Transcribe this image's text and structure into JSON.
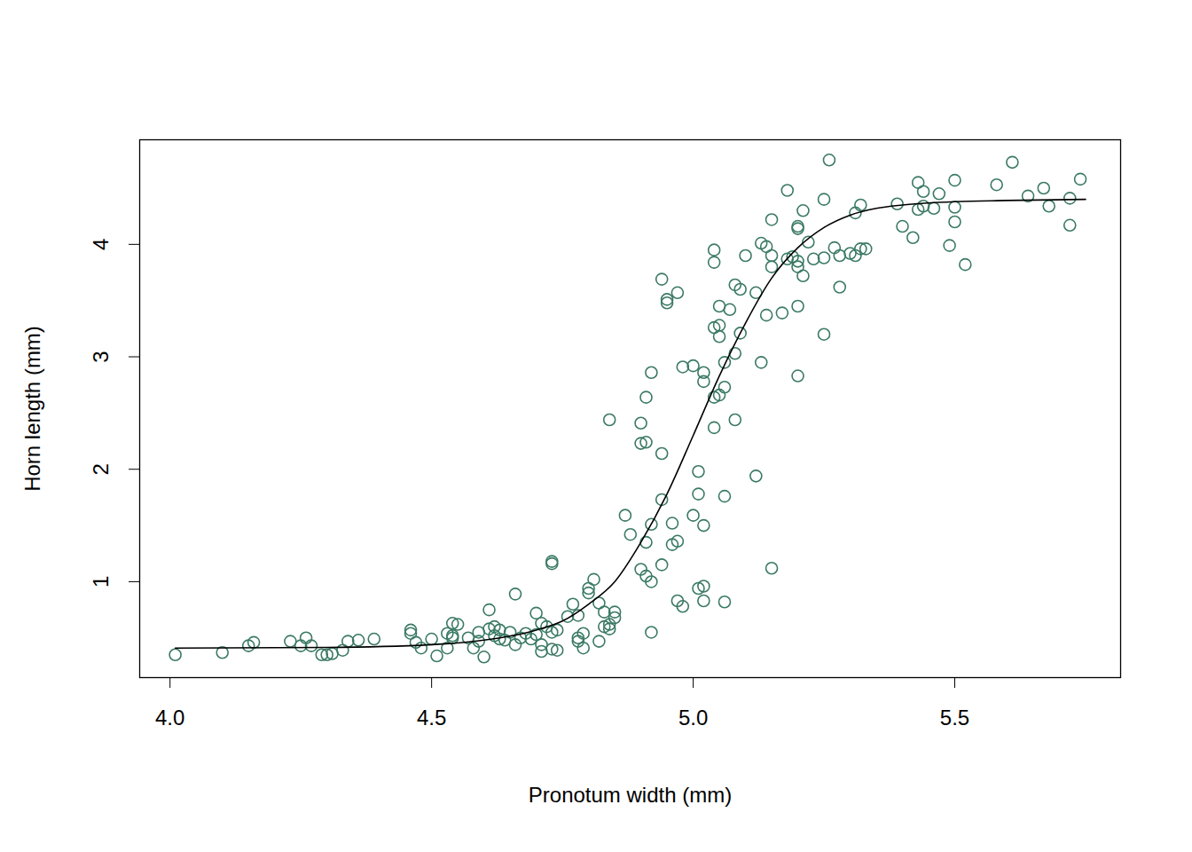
{
  "chart_data": {
    "type": "scatter",
    "x_label": "Pronotum width (mm)",
    "y_label": "Horn length (mm)",
    "xlim": [
      3.942,
      5.817
    ],
    "ylim": [
      0.147,
      4.93
    ],
    "xticks": [
      {
        "value": 4,
        "label": "4.0"
      },
      {
        "value": 4.5,
        "label": "4.5"
      },
      {
        "value": 5,
        "label": "5.0"
      },
      {
        "value": 5.5,
        "label": "5.5"
      }
    ],
    "yticks": [
      1,
      2,
      3,
      4
    ],
    "grid": false,
    "series": [
      {
        "type": "scatter",
        "color": "#3b7a64",
        "marker": "circle",
        "x": [
          4.01,
          4.1,
          4.15,
          4.16,
          4.23,
          4.25,
          4.26,
          4.27,
          4.29,
          4.3,
          4.31,
          4.33,
          4.34,
          4.36,
          4.39,
          4.46,
          4.46,
          4.47,
          4.48,
          4.5,
          4.51,
          4.53,
          4.53,
          4.54,
          4.54,
          4.55,
          4.54,
          4.57,
          4.58,
          4.59,
          4.59,
          4.6,
          4.61,
          4.61,
          4.62,
          4.62,
          4.63,
          4.63,
          4.64,
          4.65,
          4.66,
          4.66,
          4.67,
          4.68,
          4.69,
          4.7,
          4.7,
          4.71,
          4.71,
          4.71,
          4.72,
          4.73,
          4.73,
          4.73,
          4.73,
          4.74,
          4.74,
          4.76,
          4.77,
          4.78,
          4.78,
          4.78,
          4.79,
          4.79,
          4.8,
          4.8,
          4.81,
          4.82,
          4.82,
          4.83,
          4.83,
          4.84,
          4.84,
          4.84,
          4.85,
          4.85,
          4.87,
          4.88,
          4.9,
          4.9,
          4.9,
          4.91,
          4.91,
          4.91,
          4.91,
          4.92,
          4.92,
          4.92,
          4.92,
          4.94,
          4.94,
          4.94,
          4.94,
          4.95,
          4.95,
          4.96,
          4.96,
          4.97,
          4.97,
          4.97,
          4.98,
          4.98,
          5.0,
          5.0,
          5.01,
          5.01,
          5.01,
          5.02,
          5.02,
          5.02,
          5.02,
          5.02,
          5.04,
          5.04,
          5.04,
          5.04,
          5.04,
          5.05,
          5.05,
          5.05,
          5.05,
          5.06,
          5.06,
          5.06,
          5.06,
          5.07,
          5.08,
          5.08,
          5.08,
          5.09,
          5.09,
          5.1,
          5.12,
          5.12,
          5.13,
          5.13,
          5.14,
          5.14,
          5.15,
          5.15,
          5.15,
          5.15,
          5.17,
          5.18,
          5.18,
          5.19,
          5.2,
          5.2,
          5.2,
          5.2,
          5.2,
          5.2,
          5.21,
          5.21,
          5.22,
          5.23,
          5.25,
          5.25,
          5.25,
          5.26,
          5.27,
          5.28,
          5.28,
          5.3,
          5.31,
          5.31,
          5.32,
          5.32,
          5.33,
          5.39,
          5.4,
          5.42,
          5.43,
          5.43,
          5.44,
          5.44,
          5.46,
          5.47,
          5.49,
          5.5,
          5.5,
          5.5,
          5.52,
          5.58,
          5.61,
          5.64,
          5.67,
          5.68,
          5.72,
          5.72,
          5.74
        ],
        "values": [
          0.35,
          0.37,
          0.43,
          0.46,
          0.47,
          0.43,
          0.5,
          0.43,
          0.35,
          0.35,
          0.36,
          0.39,
          0.47,
          0.48,
          0.49,
          0.57,
          0.54,
          0.46,
          0.41,
          0.49,
          0.34,
          0.54,
          0.41,
          0.5,
          0.63,
          0.62,
          0.52,
          0.5,
          0.41,
          0.55,
          0.47,
          0.33,
          0.75,
          0.58,
          0.6,
          0.52,
          0.49,
          0.57,
          0.48,
          0.55,
          0.89,
          0.44,
          0.5,
          0.54,
          0.49,
          0.72,
          0.53,
          0.63,
          0.38,
          0.44,
          0.6,
          0.55,
          1.18,
          1.16,
          0.4,
          0.57,
          0.39,
          0.69,
          0.8,
          0.5,
          0.47,
          0.7,
          0.54,
          0.41,
          0.94,
          0.9,
          1.02,
          0.81,
          0.47,
          0.73,
          0.6,
          0.58,
          0.62,
          2.44,
          0.73,
          0.68,
          1.59,
          1.42,
          2.41,
          2.23,
          1.11,
          2.64,
          2.24,
          1.35,
          1.05,
          2.86,
          1.51,
          1.0,
          0.55,
          3.69,
          2.14,
          1.73,
          1.15,
          3.51,
          3.48,
          1.52,
          1.33,
          3.57,
          1.36,
          0.83,
          2.91,
          0.78,
          1.59,
          2.92,
          1.98,
          1.78,
          0.94,
          2.86,
          2.78,
          1.5,
          0.96,
          0.83,
          3.95,
          3.84,
          3.26,
          2.37,
          2.64,
          3.45,
          3.28,
          3.18,
          2.66,
          2.95,
          2.73,
          1.76,
          0.82,
          3.42,
          3.64,
          3.03,
          2.44,
          3.6,
          3.21,
          3.9,
          3.57,
          1.94,
          2.95,
          4.01,
          3.37,
          3.98,
          4.22,
          3.9,
          3.8,
          1.12,
          3.39,
          4.48,
          3.87,
          3.89,
          4.16,
          4.14,
          3.85,
          3.8,
          3.45,
          2.83,
          4.3,
          3.72,
          4.02,
          3.87,
          4.4,
          3.88,
          3.2,
          4.75,
          3.97,
          3.9,
          3.62,
          3.92,
          3.9,
          4.28,
          4.35,
          3.96,
          3.96,
          4.36,
          4.16,
          4.06,
          4.55,
          4.31,
          4.47,
          4.34,
          4.32,
          4.45,
          3.99,
          4.57,
          4.33,
          4.2,
          3.82,
          4.53,
          4.73,
          4.43,
          4.5,
          4.34,
          4.41,
          4.17,
          4.58
        ]
      },
      {
        "type": "line",
        "color": "#000000",
        "line_style": "solid",
        "x": [
          4.01,
          4.3,
          4.5,
          4.6,
          4.7,
          4.75,
          4.8,
          4.85,
          4.9,
          4.95,
          5.0,
          5.05,
          5.1,
          5.15,
          5.2,
          5.25,
          5.3,
          5.35,
          5.4,
          5.5,
          5.6,
          5.75
        ],
        "values": [
          0.41,
          0.415,
          0.44,
          0.48,
          0.57,
          0.65,
          0.8,
          1.0,
          1.35,
          1.78,
          2.3,
          2.83,
          3.3,
          3.7,
          3.97,
          4.15,
          4.26,
          4.32,
          4.35,
          4.38,
          4.39,
          4.4
        ]
      }
    ]
  }
}
